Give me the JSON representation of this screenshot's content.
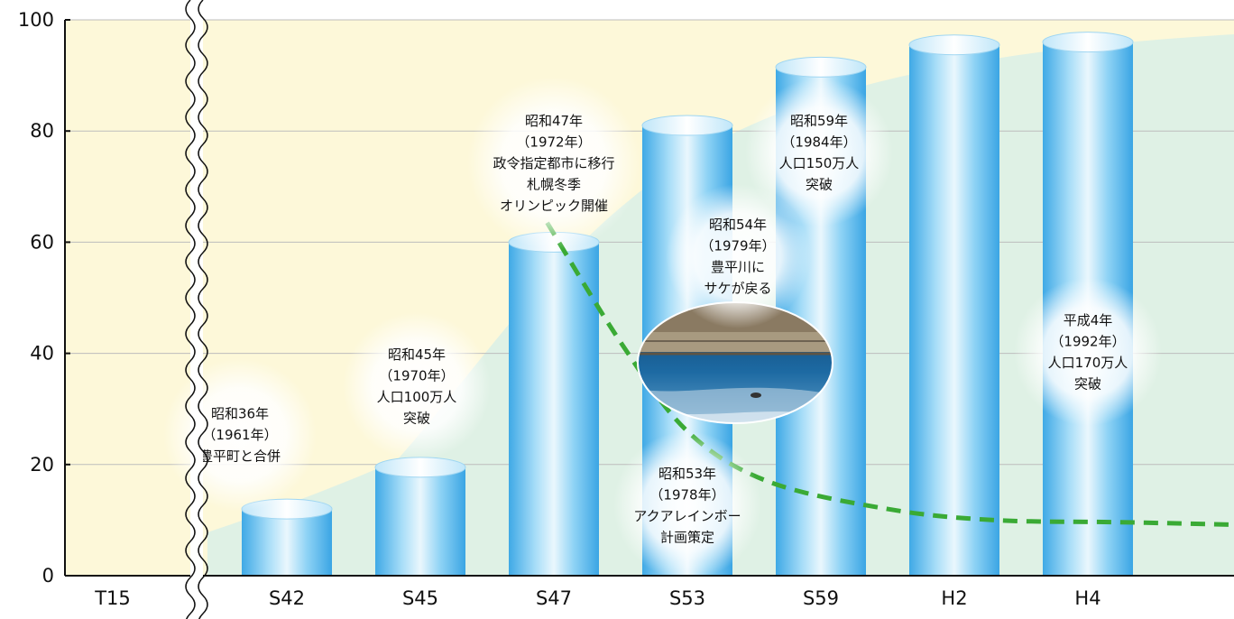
{
  "chart_data": {
    "type": "bar",
    "title": "",
    "xlabel": "",
    "ylabel": "",
    "categories": [
      "T15",
      "S42",
      "S45",
      "S47",
      "S53",
      "S59",
      "H2",
      "H4"
    ],
    "values": [
      null,
      12,
      19.5,
      60,
      81,
      91.5,
      95.5,
      96
    ],
    "y_ticks": [
      "0",
      "20",
      "40",
      "60",
      "80",
      "100"
    ],
    "ylim": [
      0,
      100
    ],
    "grid": true,
    "axis_break_after": "T15",
    "trend_line": {
      "style": "dashed",
      "color": "#3aaa35",
      "points": [
        {
          "x": 2.95,
          "y": 63.5
        },
        {
          "x": 3.5,
          "y": 42
        },
        {
          "x": 4.0,
          "y": 26
        },
        {
          "x": 4.6,
          "y": 17
        },
        {
          "x": 5.5,
          "y": 12
        },
        {
          "x": 6.3,
          "y": 10
        },
        {
          "x": 7.3,
          "y": 9.6
        },
        {
          "x": 8.4,
          "y": 9
        }
      ]
    },
    "colors": {
      "bar": "#5bbdf0",
      "bar_light": "#e6f6fd",
      "background": "#fdf8d9",
      "area": "#dcefe6",
      "trend": "#3aaa35"
    }
  },
  "annotations": [
    {
      "lines": [
        "昭和36年",
        "（1961年）",
        "豊平町と合併"
      ]
    },
    {
      "lines": [
        "昭和45年",
        "（1970年）",
        "人口100万人",
        "突破"
      ]
    },
    {
      "lines": [
        "昭和47年",
        "（1972年）",
        "政令指定都市に移行",
        "札幌冬季",
        "オリンピック開催"
      ]
    },
    {
      "lines": [
        "昭和54年",
        "（1979年）",
        "豊平川に",
        "サケが戻る"
      ]
    },
    {
      "lines": [
        "昭和53年",
        "（1978年）",
        "アクアレインボー",
        "計画策定"
      ]
    },
    {
      "lines": [
        "昭和59年",
        "（1984年）",
        "人口150万人",
        "突破"
      ]
    },
    {
      "lines": [
        "平成4年",
        "（1992年）",
        "人口170万人",
        "突破"
      ]
    }
  ]
}
